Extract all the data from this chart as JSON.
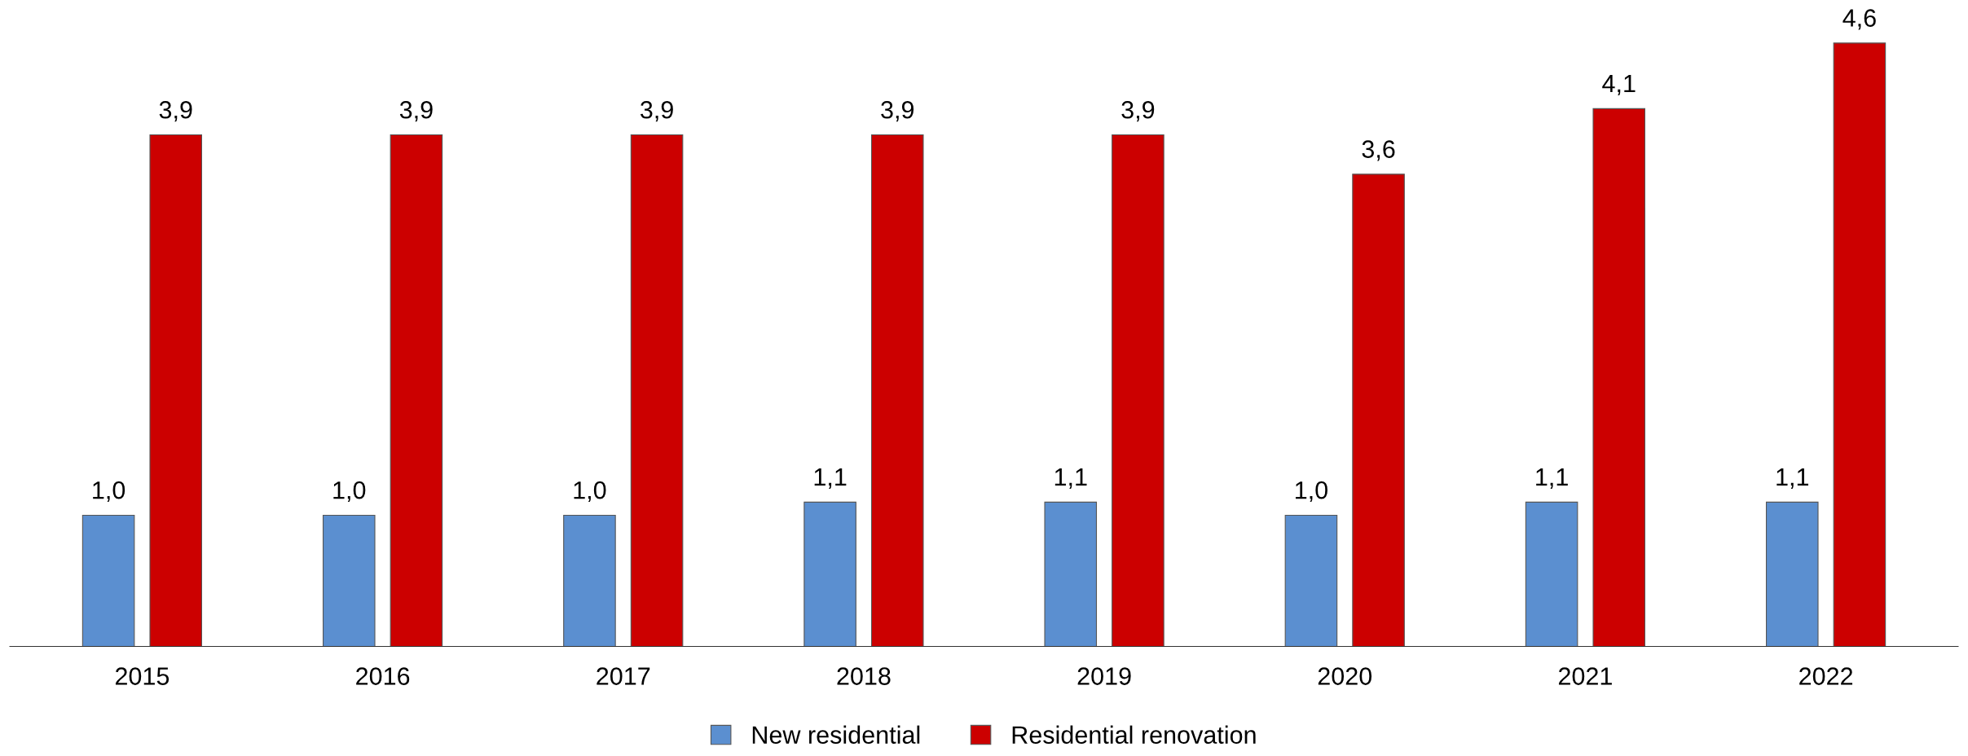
{
  "chart_data": {
    "type": "bar",
    "categories": [
      "2015",
      "2016",
      "2017",
      "2018",
      "2019",
      "2020",
      "2021",
      "2022"
    ],
    "series": [
      {
        "name": "New residential",
        "color": "#5b8fd0",
        "values": [
          1.0,
          1.0,
          1.0,
          1.1,
          1.1,
          1.0,
          1.1,
          1.1
        ],
        "value_labels": [
          "1,0",
          "1,0",
          "1,0",
          "1,1",
          "1,1",
          "1,0",
          "1,1",
          "1,1"
        ]
      },
      {
        "name": "Residential renovation",
        "color": "#cc0000",
        "values": [
          3.9,
          3.9,
          3.9,
          3.9,
          3.9,
          3.6,
          4.1,
          4.6
        ],
        "value_labels": [
          "3,9",
          "3,9",
          "3,9",
          "3,9",
          "3,9",
          "3,6",
          "4,1",
          "4,6"
        ]
      }
    ],
    "legend": "bottom",
    "grid": false
  }
}
